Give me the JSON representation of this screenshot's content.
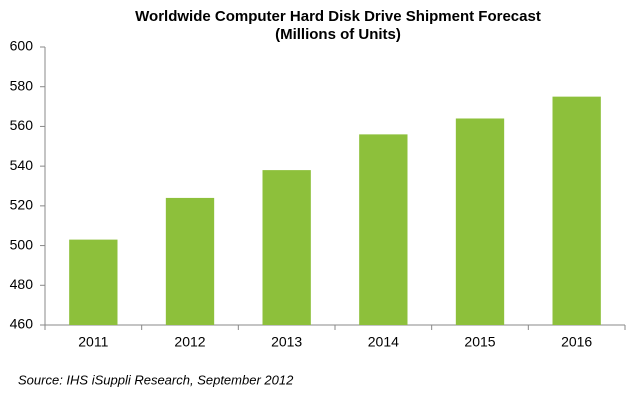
{
  "chart_data": {
    "type": "bar",
    "title": "Worldwide Computer Hard Disk Drive Shipment Forecast",
    "subtitle": "(Millions of Units)",
    "source": "Source: IHS iSuppli Research, September 2012",
    "categories": [
      "2011",
      "2012",
      "2013",
      "2014",
      "2015",
      "2016"
    ],
    "values": [
      503,
      524,
      538,
      556,
      564,
      575
    ],
    "color": "#8dc03b",
    "ylim": [
      460,
      600
    ],
    "yticks": [
      460,
      480,
      500,
      520,
      540,
      560,
      580,
      600
    ],
    "grid": false
  }
}
